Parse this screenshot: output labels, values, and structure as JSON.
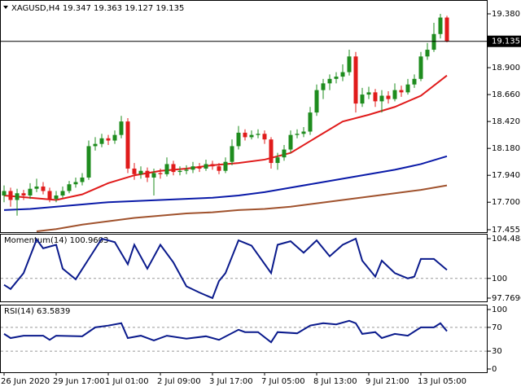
{
  "chart_data": [
    {
      "type": "candlestick",
      "title": "XAGUSD,H4 19.347 19.363 19.127 19.135",
      "categories": [
        "26 Jun 2020",
        null,
        null,
        null,
        null,
        null,
        null,
        null,
        "29 Jun 17:00",
        null,
        null,
        null,
        null,
        null,
        null,
        null,
        "1 Jul 01:00",
        null,
        null,
        null,
        null,
        null,
        null,
        null,
        "2 Jul 09:00",
        null,
        null,
        null,
        null,
        null,
        null,
        null,
        "3 Jul 17:00",
        null,
        null,
        null,
        null,
        null,
        null,
        null,
        "7 Jul 05:00",
        null,
        null,
        null,
        null,
        null,
        null,
        null,
        "8 Jul 13:00",
        null,
        null,
        null,
        null,
        null,
        null,
        null,
        "9 Jul 21:00",
        null,
        null,
        null,
        null,
        null,
        null,
        null,
        "13 Jul 05:00",
        null,
        null,
        null,
        null
      ],
      "open": [
        17.76,
        17.8,
        17.72,
        17.78,
        17.76,
        17.82,
        17.84,
        17.8,
        17.73,
        17.76,
        17.8,
        17.86,
        17.88,
        17.92,
        18.2,
        18.22,
        18.27,
        18.25,
        18.3,
        18.42,
        18.0,
        17.95,
        17.98,
        17.92,
        17.96,
        17.95,
        18.04,
        17.97,
        17.98,
        17.99,
        18.02,
        18.0,
        18.04,
        18.02,
        17.98,
        18.06,
        18.2,
        18.32,
        18.28,
        18.3,
        18.31,
        18.26,
        18.05,
        18.1,
        18.17,
        18.3,
        18.31,
        18.33,
        18.5,
        18.7,
        18.76,
        18.8,
        18.82,
        18.86,
        19.0,
        18.58,
        18.66,
        18.68,
        18.6,
        18.65,
        18.62,
        18.7,
        18.68,
        18.75,
        18.8,
        19.0,
        19.06,
        19.2,
        19.347
      ],
      "high": [
        17.85,
        17.83,
        17.82,
        17.81,
        17.87,
        17.91,
        17.88,
        17.83,
        17.8,
        17.84,
        17.89,
        17.92,
        17.96,
        18.25,
        18.28,
        18.31,
        18.3,
        18.34,
        18.47,
        18.45,
        18.05,
        18.02,
        18.01,
        18.0,
        18.0,
        18.1,
        18.07,
        18.02,
        18.03,
        18.06,
        18.05,
        18.08,
        18.07,
        18.05,
        18.1,
        18.26,
        18.38,
        18.35,
        18.34,
        18.35,
        18.34,
        18.28,
        18.14,
        18.21,
        18.34,
        18.35,
        18.37,
        18.55,
        18.75,
        18.8,
        18.84,
        18.86,
        18.93,
        19.06,
        19.04,
        18.72,
        18.73,
        18.71,
        18.7,
        18.69,
        18.76,
        18.74,
        18.8,
        18.84,
        19.04,
        19.12,
        19.3,
        19.38,
        19.363
      ],
      "low": [
        17.7,
        17.66,
        17.58,
        17.72,
        17.73,
        17.79,
        17.77,
        17.7,
        17.7,
        17.74,
        17.78,
        17.83,
        17.85,
        17.9,
        18.16,
        18.19,
        18.21,
        18.22,
        18.27,
        17.96,
        17.9,
        17.91,
        17.88,
        17.76,
        17.91,
        17.93,
        17.94,
        17.94,
        17.95,
        17.96,
        17.97,
        17.98,
        17.99,
        17.95,
        17.96,
        18.03,
        18.17,
        18.25,
        18.26,
        18.27,
        18.22,
        18.0,
        17.99,
        18.07,
        18.14,
        18.27,
        18.28,
        18.3,
        18.47,
        18.62,
        18.7,
        18.76,
        18.78,
        18.83,
        18.5,
        18.55,
        18.62,
        18.55,
        18.5,
        18.58,
        18.6,
        18.64,
        18.66,
        18.72,
        18.78,
        18.97,
        19.04,
        19.16,
        19.127
      ],
      "close": [
        17.8,
        17.72,
        17.78,
        17.76,
        17.82,
        17.84,
        17.8,
        17.73,
        17.76,
        17.8,
        17.86,
        17.88,
        17.92,
        18.2,
        18.22,
        18.27,
        18.25,
        18.3,
        18.42,
        18.0,
        17.95,
        17.98,
        17.92,
        17.96,
        17.95,
        18.04,
        17.97,
        17.98,
        17.99,
        18.02,
        18.0,
        18.04,
        18.02,
        17.98,
        18.06,
        18.2,
        18.32,
        18.28,
        18.3,
        18.31,
        18.26,
        18.05,
        18.1,
        18.17,
        18.3,
        18.31,
        18.33,
        18.5,
        18.7,
        18.76,
        18.8,
        18.82,
        18.86,
        19.0,
        18.58,
        18.66,
        18.68,
        18.6,
        18.65,
        18.62,
        18.7,
        18.68,
        18.75,
        18.8,
        19.0,
        19.06,
        19.2,
        19.347,
        19.135
      ],
      "up_color": "#1e8c1e",
      "down_color": "#e01b1b",
      "series": [
        {
          "color": "#e01b1b",
          "x": [
            0,
            4,
            8,
            12,
            16,
            20,
            24,
            28,
            32,
            36,
            40,
            44,
            48,
            52,
            56,
            60,
            64,
            68
          ],
          "values": [
            17.76,
            17.74,
            17.72,
            17.77,
            17.87,
            17.94,
            17.98,
            18.0,
            18.03,
            18.05,
            18.08,
            18.14,
            18.28,
            18.42,
            18.48,
            18.55,
            18.65,
            18.83
          ]
        },
        {
          "color": "#0a1aa8",
          "x": [
            0,
            4,
            8,
            12,
            16,
            20,
            24,
            28,
            32,
            36,
            40,
            44,
            48,
            52,
            56,
            60,
            64,
            68
          ],
          "values": [
            17.63,
            17.64,
            17.66,
            17.68,
            17.7,
            17.71,
            17.72,
            17.73,
            17.74,
            17.76,
            17.79,
            17.83,
            17.87,
            17.91,
            17.95,
            17.99,
            18.04,
            18.11
          ]
        },
        {
          "color": "#a0522d",
          "x": [
            5,
            8,
            12,
            16,
            20,
            24,
            28,
            32,
            36,
            40,
            44,
            48,
            52,
            56,
            60,
            64,
            68
          ],
          "values": [
            17.44,
            17.46,
            17.5,
            17.53,
            17.56,
            17.58,
            17.6,
            17.61,
            17.63,
            17.64,
            17.66,
            17.69,
            17.72,
            17.75,
            17.78,
            17.81,
            17.85
          ]
        }
      ],
      "last_price": 19.135,
      "ylim": [
        17.433,
        19.489
      ],
      "yticks": [
        {
          "value": 19.38,
          "label": "19.380"
        },
        {
          "value": 18.9,
          "label": "18.900"
        },
        {
          "value": 18.66,
          "label": "18.660"
        },
        {
          "value": 18.42,
          "label": "18.420"
        },
        {
          "value": 18.18,
          "label": "18.180"
        },
        {
          "value": 17.94,
          "label": "17.940"
        },
        {
          "value": 17.7,
          "label": "17.700"
        },
        17.455
      ]
    },
    {
      "type": "line",
      "title": "Momentum(14) 100.9603",
      "series": [
        {
          "color": "#0a1a8c",
          "x": [
            0,
            1,
            3,
            5,
            6,
            8,
            9,
            11,
            13,
            15,
            17,
            19,
            20,
            22,
            24,
            26,
            28,
            30,
            32,
            33,
            34,
            36,
            38,
            41,
            42,
            44,
            46,
            48,
            50,
            52,
            54,
            55,
            57,
            58,
            60,
            62,
            63,
            64,
            66,
            68
          ],
          "values": [
            99.27,
            98.8,
            100.6,
            104.4,
            103.4,
            103.8,
            101.1,
            99.9,
            102.2,
            104.49,
            104.1,
            101.6,
            103.8,
            101.1,
            103.8,
            101.8,
            99.1,
            98.4,
            97.77,
            99.7,
            100.6,
            104.3,
            103.7,
            100.6,
            103.8,
            104.2,
            102.9,
            104.3,
            102.5,
            103.8,
            104.49,
            102.0,
            100.2,
            102.0,
            100.6,
            100.0,
            100.2,
            102.2,
            102.2,
            100.9603
          ]
        }
      ],
      "levels": [
        100
      ],
      "ylim": [
        97.4,
        104.95
      ],
      "yticks": [
        104.4886,
        100,
        97.7696
      ]
    },
    {
      "type": "line",
      "title": "RSI(14) 63.5839",
      "series": [
        {
          "color": "#0a1a8c",
          "x": [
            0,
            1,
            3,
            6,
            7,
            8,
            12,
            14,
            16,
            18,
            19,
            21,
            23,
            25,
            28,
            31,
            33,
            36,
            37,
            39,
            41,
            42,
            45,
            47,
            49,
            51,
            53,
            54,
            55,
            57,
            58,
            60,
            62,
            64,
            66,
            67,
            68
          ],
          "values": [
            59,
            52,
            56,
            56,
            49,
            56,
            55,
            70,
            73,
            77,
            52,
            56,
            48,
            56,
            51,
            55,
            49,
            66,
            62,
            62,
            45,
            62,
            60,
            73,
            77,
            75,
            81,
            77,
            59,
            62,
            52,
            59,
            56,
            70,
            70,
            77,
            63.5839
          ]
        }
      ],
      "levels": [
        70,
        30
      ],
      "ylim": [
        -5.5,
        106.8
      ],
      "yticks": [
        100,
        70,
        30,
        0
      ]
    }
  ]
}
